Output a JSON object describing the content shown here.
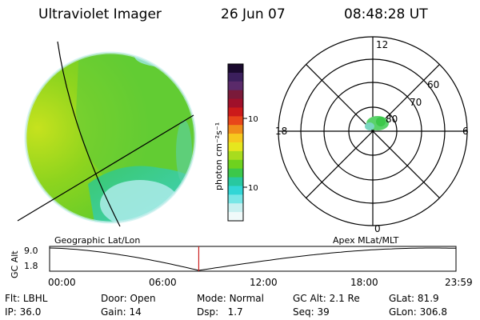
{
  "header": {
    "instrument": "Ultraviolet Imager",
    "date": "26 Jun 07",
    "time": "08:48:28 UT"
  },
  "colorbar": {
    "unit_label": "photon cm⁻²s⁻¹",
    "ticks": [
      "100",
      "10"
    ],
    "colors": [
      "#1a0a2e",
      "#3b1f5c",
      "#5a2a6a",
      "#7a1a3a",
      "#a0102a",
      "#cc1a1a",
      "#e8461a",
      "#f08c1a",
      "#f6c81e",
      "#e6e61e",
      "#a8dc1e",
      "#6ed21e",
      "#3cc84a",
      "#28c8a0",
      "#32d6d6",
      "#78e6e6",
      "#c8f0f0",
      "#f0fafa"
    ]
  },
  "polar_plot": {
    "mlt_labels": [
      "12",
      "18",
      "6",
      "0"
    ],
    "lat_labels": [
      "60",
      "70",
      "80"
    ]
  },
  "timeline": {
    "left_label": "Geographic Lat/Lon",
    "right_label": "Apex MLat/MLT",
    "axis_title": "GC Alt",
    "y_ticks": [
      "9.0",
      "1.8"
    ],
    "x_ticks": [
      "00:00",
      "06:00",
      "12:00",
      "18:00",
      "23:59"
    ],
    "marker_time_fraction": 0.367
  },
  "status": {
    "row1": [
      {
        "key": "Flt:",
        "value": "LBHL"
      },
      {
        "key": "Door:",
        "value": "Open"
      },
      {
        "key": "Mode:",
        "value": "Normal"
      },
      {
        "key": "GC Alt:",
        "value": "2.1 Re"
      },
      {
        "key": "GLat:",
        "value": "81.9"
      }
    ],
    "row2": [
      {
        "key": "IP:",
        "value": "36.0"
      },
      {
        "key": "Gain:",
        "value": "14"
      },
      {
        "key": "Dsp:",
        "value": "1.7"
      },
      {
        "key": "Seq:",
        "value": "39"
      },
      {
        "key": "GLon:",
        "value": "306.8"
      }
    ]
  }
}
